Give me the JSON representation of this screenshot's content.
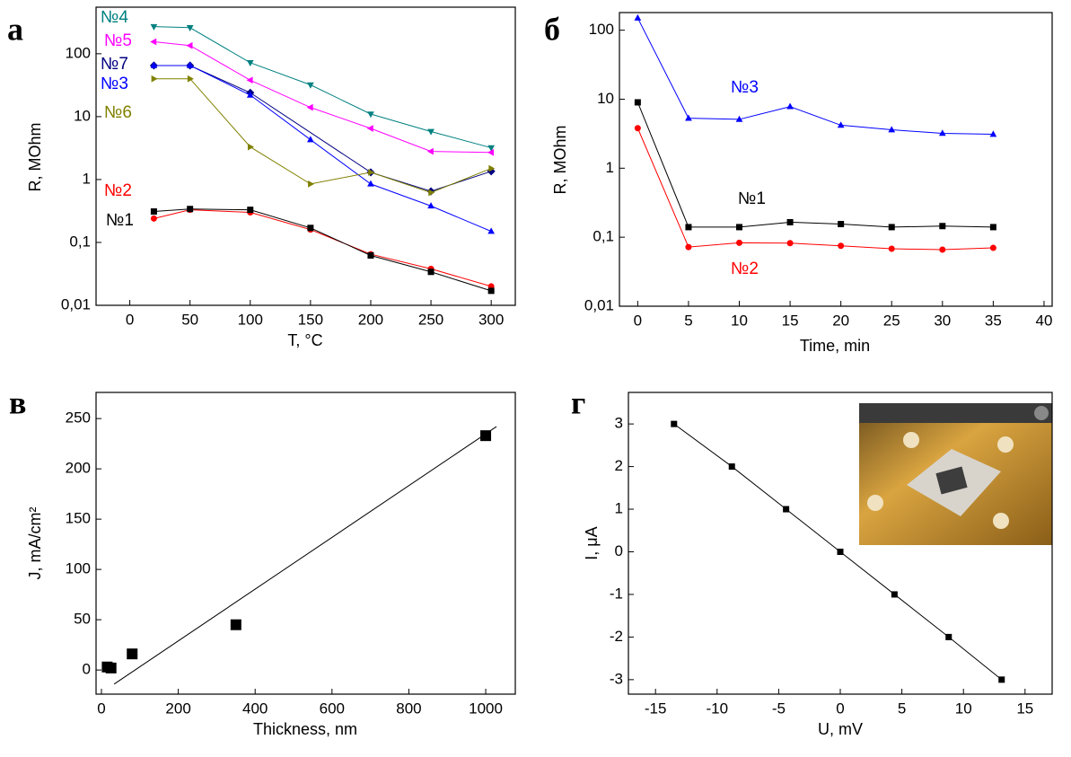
{
  "chart_data": [
    {
      "type": "line",
      "panel_label": "а",
      "ylog": true,
      "xlabel": "T, °C",
      "ylabel": "R, MOhm",
      "xlim": [
        -28,
        320
      ],
      "xticks": [
        0,
        50,
        100,
        150,
        200,
        250,
        300
      ],
      "ylim": [
        0.01,
        550
      ],
      "yticks": [
        {
          "value": 0.01,
          "label": "0,01"
        },
        {
          "value": 0.1,
          "label": "0,1"
        },
        1,
        10,
        100
      ],
      "series": [
        {
          "name": "№4",
          "color": "#008080",
          "marker": "triangle-down",
          "x": [
            20,
            50,
            100,
            150,
            200,
            250,
            300
          ],
          "values": [
            270,
            260,
            72,
            32,
            11,
            5.8,
            3.2
          ]
        },
        {
          "name": "№5",
          "color": "#ff00ff",
          "marker": "triangle-left",
          "x": [
            20,
            50,
            100,
            150,
            200,
            250,
            300
          ],
          "values": [
            155,
            135,
            38,
            14,
            6.5,
            2.8,
            2.7
          ]
        },
        {
          "name": "№7",
          "color": "#000080",
          "marker": "diamond",
          "x": [
            20,
            50,
            100,
            200,
            250,
            300
          ],
          "values": [
            65,
            65,
            24,
            1.3,
            0.65,
            1.35
          ]
        },
        {
          "name": "№3",
          "color": "#0000ff",
          "marker": "triangle-up",
          "x": [
            20,
            50,
            100,
            150,
            200,
            250,
            300
          ],
          "values": [
            65,
            65,
            22,
            4.3,
            0.85,
            0.38,
            0.15
          ]
        },
        {
          "name": "№6",
          "color": "#808000",
          "marker": "triangle-right",
          "x": [
            20,
            50,
            100,
            150,
            200,
            250,
            300
          ],
          "values": [
            40,
            40,
            3.3,
            0.85,
            1.3,
            0.62,
            1.5
          ]
        },
        {
          "name": "№2",
          "color": "#ff0000",
          "marker": "circle",
          "x": [
            20,
            50,
            100,
            150,
            200,
            250,
            300
          ],
          "values": [
            0.24,
            0.33,
            0.3,
            0.16,
            0.065,
            0.038,
            0.02
          ]
        },
        {
          "name": "№1",
          "color": "#000000",
          "marker": "square",
          "x": [
            20,
            50,
            100,
            150,
            200,
            250,
            300
          ],
          "values": [
            0.31,
            0.34,
            0.33,
            0.17,
            0.062,
            0.034,
            0.017
          ]
        }
      ]
    },
    {
      "type": "line",
      "panel_label": "б",
      "ylog": true,
      "xlabel": "Time, min",
      "ylabel": "R, MOhm",
      "xlim": [
        -1.8,
        40.8
      ],
      "xticks": [
        0,
        5,
        10,
        15,
        20,
        25,
        30,
        35,
        40
      ],
      "ylim": [
        0.01,
        180
      ],
      "yticks": [
        {
          "value": 0.01,
          "label": "0,01"
        },
        {
          "value": 0.1,
          "label": "0,1"
        },
        1,
        10,
        100
      ],
      "x": [
        0,
        5,
        10,
        15,
        20,
        25,
        30,
        35
      ],
      "series": [
        {
          "name": "№3",
          "color": "#0000ff",
          "marker": "triangle-up",
          "values": [
            150,
            5.3,
            5.1,
            7.8,
            4.2,
            3.6,
            3.2,
            3.1
          ]
        },
        {
          "name": "№1",
          "color": "#000000",
          "marker": "square",
          "values": [
            9,
            0.14,
            0.14,
            0.165,
            0.155,
            0.14,
            0.145,
            0.14
          ]
        },
        {
          "name": "№2",
          "color": "#ff0000",
          "marker": "circle",
          "values": [
            3.8,
            0.072,
            0.083,
            0.082,
            0.075,
            0.068,
            0.066,
            0.07
          ]
        }
      ]
    },
    {
      "type": "scatter",
      "panel_label": "в",
      "ylog": false,
      "xlabel": "Thickness, nm",
      "ylabel": "J, mA/cm²",
      "xlim": [
        -14,
        1077
      ],
      "xticks": [
        0,
        200,
        400,
        600,
        800,
        1000
      ],
      "ylim": [
        -24,
        276
      ],
      "yticks": [
        0,
        50,
        100,
        150,
        200,
        250
      ],
      "series": [
        {
          "color": "#000000",
          "marker": "square",
          "x": [
            15,
            25,
            80,
            350,
            1000
          ],
          "values": [
            3,
            2,
            16,
            45,
            233
          ]
        }
      ],
      "fit_line": {
        "x": [
          33,
          1028
        ],
        "values": [
          -14,
          242
        ]
      }
    },
    {
      "type": "line",
      "panel_label": "г",
      "ylog": false,
      "xlabel": "U, mV",
      "ylabel": "I, μA",
      "xlim": [
        -17.2,
        17.2
      ],
      "xticks": [
        -15,
        -10,
        -5,
        0,
        5,
        10,
        15
      ],
      "ylim": [
        -3.34,
        3.74
      ],
      "yticks": [
        -3,
        -2,
        -1,
        0,
        1,
        2,
        3
      ],
      "series": [
        {
          "color": "#000000",
          "marker": "square",
          "x": [
            -13.5,
            -8.8,
            -4.4,
            0,
            4.4,
            8.8,
            13.1
          ],
          "values": [
            3,
            2,
            1,
            0,
            -1,
            -2,
            -3
          ]
        }
      ]
    }
  ]
}
